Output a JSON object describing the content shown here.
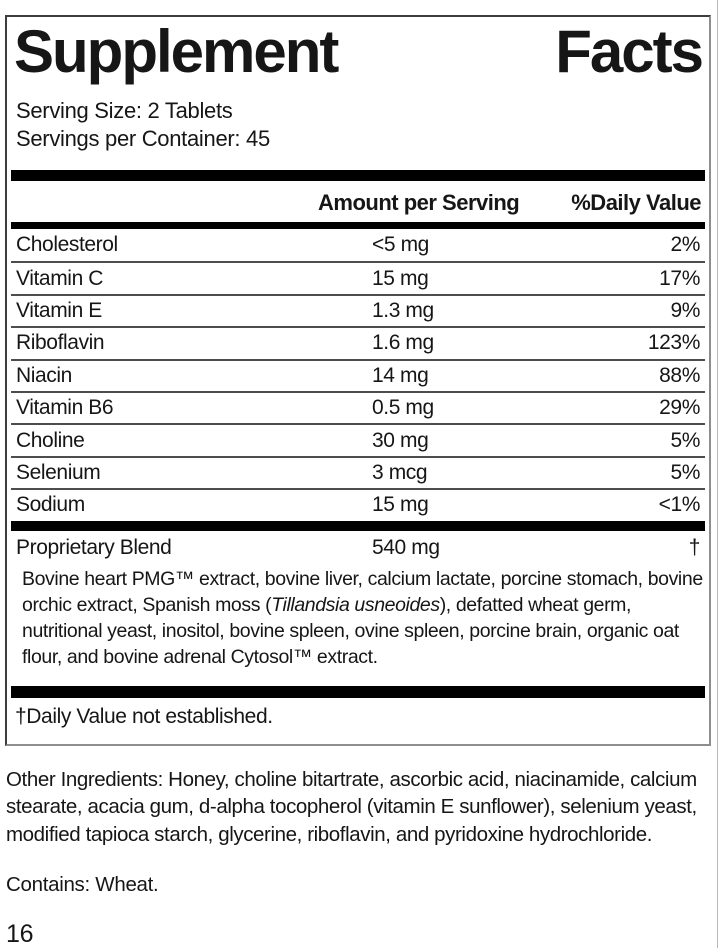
{
  "panel": {
    "title": {
      "left": "Supplement",
      "right": "Facts"
    },
    "serving_size": "Serving Size: 2 Tablets",
    "servings_per_container": "Servings per Container: 45",
    "columns": {
      "amount": "Amount per Serving",
      "daily_value": "%Daily Value"
    },
    "nutrients": [
      {
        "name": "Cholesterol",
        "amount": "<5 mg",
        "dv": "2%"
      },
      {
        "name": "Vitamin C",
        "amount": "15 mg",
        "dv": "17%"
      },
      {
        "name": "Vitamin E",
        "amount": "1.3 mg",
        "dv": "9%"
      },
      {
        "name": "Riboflavin",
        "amount": "1.6 mg",
        "dv": "123%"
      },
      {
        "name": "Niacin",
        "amount": "14 mg",
        "dv": "88%"
      },
      {
        "name": "Vitamin B6",
        "amount": "0.5 mg",
        "dv": "29%"
      },
      {
        "name": "Choline",
        "amount": "30 mg",
        "dv": "5%"
      },
      {
        "name": "Selenium",
        "amount": "3 mcg",
        "dv": "5%"
      },
      {
        "name": "Sodium",
        "amount": "15 mg",
        "dv": "<1%"
      }
    ],
    "proprietary_blend": {
      "name": "Proprietary Blend",
      "amount": "540 mg",
      "dv": "†"
    },
    "blend_description": {
      "before_latin": "Bovine heart PMG™ extract, bovine liver, calcium lactate, porcine stomach, bovine orchic extract, Spanish moss (",
      "latin": "Tillandsia usneoides",
      "after_latin": "), defatted wheat germ, nutritional yeast, inositol, bovine spleen, ovine spleen, porcine brain, organic oat flour, and bovine adrenal Cytosol™ extract."
    },
    "footnote": "†Daily Value not established."
  },
  "other_ingredients": "Other Ingredients: Honey, choline bitartrate, ascorbic acid, niacinamide, calcium stearate, acacia gum, d-alpha tocopherol (vitamin E sunflower), selenium yeast, modified tapioca starch, glycerine, riboflavin, and pyridoxine hydrochloride.",
  "contains": "Contains: Wheat.",
  "page_number": "16",
  "colors": {
    "bar": "#000000",
    "text": "#161616",
    "separator": "#4d4d4d",
    "border_dark": "#3d3d3d",
    "border_light": "#8e8e8e"
  }
}
